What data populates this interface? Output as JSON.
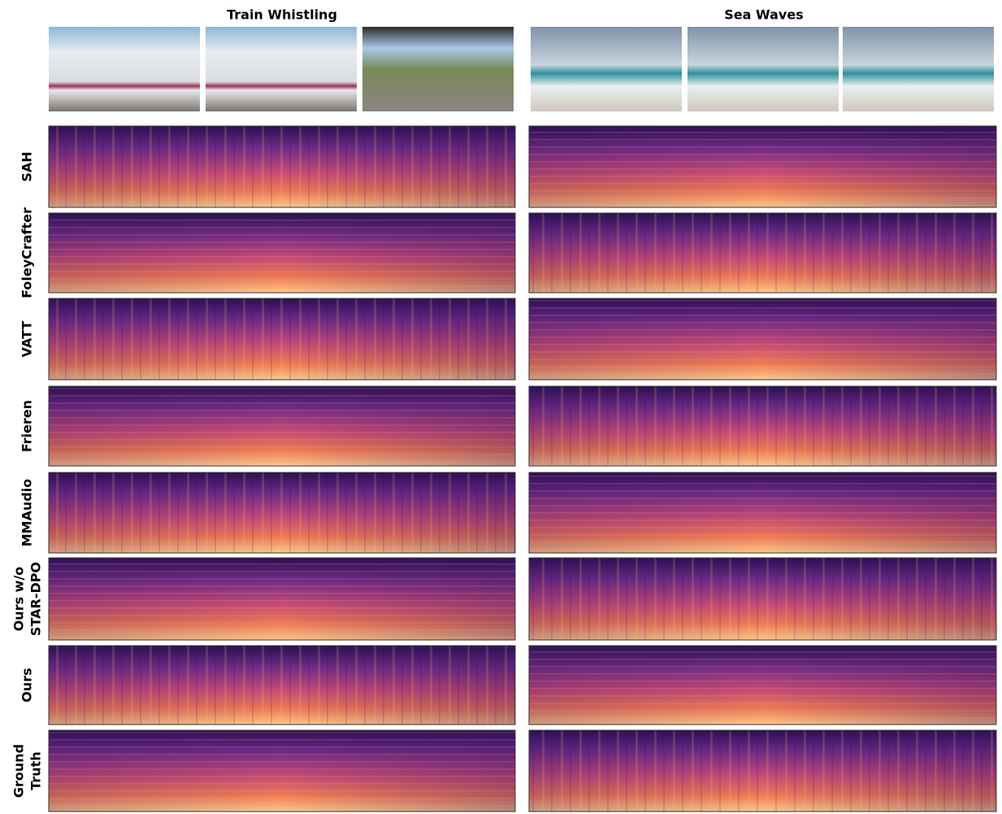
{
  "columns": [
    {
      "title": "Train Whistling"
    },
    {
      "title": "Sea Waves"
    }
  ],
  "rows": [
    {
      "label": [
        "SAH"
      ]
    },
    {
      "label": [
        "FoleyCrafter"
      ]
    },
    {
      "label": [
        "VATT"
      ]
    },
    {
      "label": [
        "Frieren"
      ]
    },
    {
      "label": [
        "MMAudio"
      ]
    },
    {
      "label": [
        "Ours w/o",
        "STAR-DPO"
      ]
    },
    {
      "label": [
        "Ours"
      ]
    },
    {
      "label": [
        "Ground",
        "Truth"
      ]
    }
  ]
}
